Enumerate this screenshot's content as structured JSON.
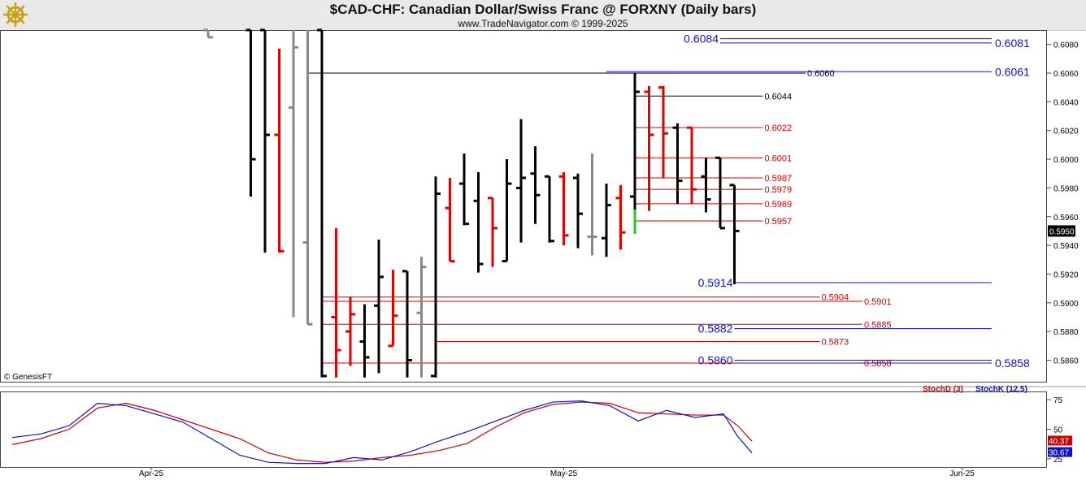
{
  "header": {
    "title": "$CAD-CHF:  Canadian Dollar/Swiss Franc @ FORXNY  (Daily bars)",
    "subtitle": "www.TradeNavigator.com © 1999-2025",
    "logo_icon": "gold-ship-wheel-logo-icon"
  },
  "watermark": "© GenesisFT",
  "colors": {
    "up_bar": "#000000",
    "down_bar": "#e00000",
    "neutral_bar": "#888888",
    "blue_line": "#1010cc",
    "red_line": "#cc0000",
    "price_box": "#000000",
    "stoch_d": "#cc0000",
    "stoch_k": "#1010cc"
  },
  "chart_data": [
    {
      "type": "ohlc",
      "name": "price",
      "ylim": [
        0.5845,
        0.609
      ],
      "y_ticks": [
        "0.6080",
        "0.6060",
        "0.6040",
        "0.6020",
        "0.6000",
        "0.5980",
        "0.5960",
        "0.5940",
        "0.5920",
        "0.5900",
        "0.5880",
        "0.5860"
      ],
      "last_price": "0.5950",
      "bars": [
        {
          "x": 14,
          "o": 0.609,
          "h": 0.609,
          "l": 0.6085,
          "c": 0.6085,
          "color": "neutral"
        },
        {
          "x": 17,
          "o": 0.609,
          "h": 0.609,
          "l": 0.5974,
          "c": 0.6,
          "color": "up"
        },
        {
          "x": 18,
          "o": 0.609,
          "h": 0.609,
          "l": 0.5935,
          "c": 0.6017,
          "color": "up"
        },
        {
          "x": 19,
          "o": 0.6017,
          "h": 0.6077,
          "l": 0.5935,
          "c": 0.5936,
          "color": "down"
        },
        {
          "x": 20,
          "o": 0.6036,
          "h": 0.609,
          "l": 0.589,
          "c": 0.6078,
          "color": "neutral"
        },
        {
          "x": 21,
          "o": 0.5942,
          "h": 0.609,
          "l": 0.5885,
          "c": 0.5885,
          "color": "neutral"
        },
        {
          "x": 22,
          "o": 0.609,
          "h": 0.609,
          "l": 0.5848,
          "c": 0.5849,
          "color": "up"
        },
        {
          "x": 23,
          "o": 0.589,
          "h": 0.5952,
          "l": 0.5848,
          "c": 0.5867,
          "color": "down"
        },
        {
          "x": 24,
          "o": 0.588,
          "h": 0.5904,
          "l": 0.5856,
          "c": 0.5892,
          "color": "down"
        },
        {
          "x": 25,
          "o": 0.5873,
          "h": 0.5899,
          "l": 0.5848,
          "c": 0.5862,
          "color": "up"
        },
        {
          "x": 26,
          "o": 0.5898,
          "h": 0.5944,
          "l": 0.5851,
          "c": 0.5918,
          "color": "up"
        },
        {
          "x": 27,
          "o": 0.587,
          "h": 0.5923,
          "l": 0.587,
          "c": 0.5891,
          "color": "down"
        },
        {
          "x": 28,
          "o": 0.5922,
          "h": 0.5922,
          "l": 0.5848,
          "c": 0.586,
          "color": "up"
        },
        {
          "x": 29,
          "o": 0.5893,
          "h": 0.5932,
          "l": 0.5848,
          "c": 0.5925,
          "color": "neutral"
        },
        {
          "x": 30,
          "o": 0.5849,
          "h": 0.5988,
          "l": 0.5848,
          "c": 0.5976,
          "color": "up"
        },
        {
          "x": 31,
          "o": 0.5966,
          "h": 0.5987,
          "l": 0.5929,
          "c": 0.5929,
          "color": "down"
        },
        {
          "x": 32,
          "o": 0.5983,
          "h": 0.6004,
          "l": 0.5954,
          "c": 0.5955,
          "color": "up"
        },
        {
          "x": 33,
          "o": 0.5971,
          "h": 0.5991,
          "l": 0.5921,
          "c": 0.5927,
          "color": "up"
        },
        {
          "x": 34,
          "o": 0.5973,
          "h": 0.5973,
          "l": 0.5925,
          "c": 0.5952,
          "color": "down"
        },
        {
          "x": 35,
          "o": 0.5929,
          "h": 0.6,
          "l": 0.5929,
          "c": 0.5983,
          "color": "up"
        },
        {
          "x": 36,
          "o": 0.598,
          "h": 0.6028,
          "l": 0.5942,
          "c": 0.5987,
          "color": "up"
        },
        {
          "x": 37,
          "o": 0.599,
          "h": 0.6009,
          "l": 0.5955,
          "c": 0.5975,
          "color": "up"
        },
        {
          "x": 38,
          "o": 0.5988,
          "h": 0.5988,
          "l": 0.5942,
          "c": 0.5943,
          "color": "up"
        },
        {
          "x": 39,
          "o": 0.5988,
          "h": 0.5991,
          "l": 0.594,
          "c": 0.5947,
          "color": "down"
        },
        {
          "x": 40,
          "o": 0.5987,
          "h": 0.599,
          "l": 0.5938,
          "c": 0.5962,
          "color": "up"
        },
        {
          "x": 41,
          "o": 0.5946,
          "h": 0.6004,
          "l": 0.5933,
          "c": 0.5946,
          "color": "neutral"
        },
        {
          "x": 42,
          "o": 0.5945,
          "h": 0.5983,
          "l": 0.5932,
          "c": 0.5968,
          "color": "up"
        },
        {
          "x": 43,
          "o": 0.5973,
          "h": 0.5982,
          "l": 0.5937,
          "c": 0.5949,
          "color": "down"
        },
        {
          "x": 44,
          "o": 0.5974,
          "h": 0.606,
          "l": 0.5948,
          "c": 0.6047,
          "color": "up"
        },
        {
          "x": 45,
          "o": 0.6047,
          "h": 0.6051,
          "l": 0.5964,
          "c": 0.6017,
          "color": "down"
        },
        {
          "x": 46,
          "o": 0.605,
          "h": 0.6051,
          "l": 0.5987,
          "c": 0.6018,
          "color": "down"
        },
        {
          "x": 47,
          "o": 0.6022,
          "h": 0.6025,
          "l": 0.5969,
          "c": 0.5985,
          "color": "up"
        },
        {
          "x": 48,
          "o": 0.6022,
          "h": 0.6022,
          "l": 0.5969,
          "c": 0.5979,
          "color": "down"
        },
        {
          "x": 49,
          "o": 0.5988,
          "h": 0.6001,
          "l": 0.5963,
          "c": 0.5972,
          "color": "up"
        },
        {
          "x": 50,
          "o": 0.6001,
          "h": 0.6001,
          "l": 0.5952,
          "c": 0.5952,
          "color": "up"
        },
        {
          "x": 51,
          "o": 0.5982,
          "h": 0.5982,
          "l": 0.5913,
          "c": 0.595,
          "color": "up"
        }
      ],
      "highlight_bar": {
        "x": 44,
        "low": 0.5948,
        "high": 0.5965,
        "color": "#22cc22"
      },
      "levels": [
        {
          "value": 0.6084,
          "label": "0.6084",
          "color": "blue",
          "x1": 50,
          "x2": 73,
          "label_side": "left"
        },
        {
          "value": 0.6081,
          "label": "0.6081",
          "color": "blue",
          "x1": 50,
          "x2": 73,
          "label_side": "right"
        },
        {
          "value": 0.6061,
          "label": "0.6061",
          "color": "blue",
          "x1": 42,
          "x2": 73,
          "label_side": "right"
        },
        {
          "value": 0.606,
          "label": "0.6060",
          "color": "black",
          "x1": 21,
          "x2": 56,
          "label_side": "end"
        },
        {
          "value": 0.6044,
          "label": "0.6044",
          "color": "black",
          "x1": 44,
          "x2": 53,
          "label_side": "end"
        },
        {
          "value": 0.6022,
          "label": "0.6022",
          "color": "red",
          "x1": 44,
          "x2": 53,
          "label_side": "end"
        },
        {
          "value": 0.6001,
          "label": "0.6001",
          "color": "red",
          "x1": 44,
          "x2": 53,
          "label_side": "end"
        },
        {
          "value": 0.5987,
          "label": "0.5987",
          "color": "red",
          "x1": 44,
          "x2": 53,
          "label_side": "end"
        },
        {
          "value": 0.5979,
          "label": "0.5979",
          "color": "red",
          "x1": 44,
          "x2": 53,
          "label_side": "end"
        },
        {
          "value": 0.5969,
          "label": "0.5969",
          "color": "red",
          "x1": 44,
          "x2": 53,
          "label_side": "end"
        },
        {
          "value": 0.5957,
          "label": "0.5957",
          "color": "red",
          "x1": 44,
          "x2": 53,
          "label_side": "end"
        },
        {
          "value": 0.5914,
          "label": "0.5914",
          "color": "blue",
          "x1": 51,
          "x2": 73,
          "label_side": "left"
        },
        {
          "value": 0.5904,
          "label": "0.5904",
          "color": "red",
          "x1": 22,
          "x2": 57,
          "label_side": "end"
        },
        {
          "value": 0.5901,
          "label": "0.5901",
          "color": "red",
          "x1": 22,
          "x2": 60,
          "label_side": "end"
        },
        {
          "value": 0.5885,
          "label": "0.5885",
          "color": "red",
          "x1": 22,
          "x2": 60,
          "label_side": "end"
        },
        {
          "value": 0.5882,
          "label": "0.5882",
          "color": "blue",
          "x1": 51,
          "x2": 73,
          "label_side": "left"
        },
        {
          "value": 0.5873,
          "label": "0.5873",
          "color": "red",
          "x1": 30,
          "x2": 57,
          "label_side": "end"
        },
        {
          "value": 0.586,
          "label": "0.5860",
          "color": "blue",
          "x1": 51,
          "x2": 73,
          "label_side": "left"
        },
        {
          "value": 0.5858,
          "label": "0.5858",
          "color": "red",
          "x1": 22,
          "x2": 60,
          "label_side": "end"
        },
        {
          "value": 0.5858,
          "label": "0.5858",
          "color": "blue",
          "x1": 51,
          "x2": 73,
          "label_side": "right"
        }
      ]
    },
    {
      "type": "line",
      "name": "stochastic",
      "ylim": [
        18,
        82
      ],
      "y_ticks": [
        "75",
        "50",
        "25"
      ],
      "legend": [
        "StochD (3)",
        "StochK (12,5)"
      ],
      "last_values": [
        "40.37",
        "30.67"
      ],
      "x_labels": [
        {
          "x": 10,
          "label": "Apr-25"
        },
        {
          "x": 39,
          "label": "May-25"
        },
        {
          "x": 67,
          "label": "Jun-25"
        }
      ],
      "series": [
        {
          "name": "StochD (3)",
          "color": "red",
          "points": [
            [
              0,
              37
            ],
            [
              2,
              42
            ],
            [
              4,
              50
            ],
            [
              6,
              68
            ],
            [
              8,
              72
            ],
            [
              10,
              66
            ],
            [
              12,
              58
            ],
            [
              14,
              50
            ],
            [
              16,
              42
            ],
            [
              18,
              30
            ],
            [
              20,
              24
            ],
            [
              22,
              22
            ],
            [
              24,
              23
            ],
            [
              26,
              26
            ],
            [
              28,
              28
            ],
            [
              30,
              32
            ],
            [
              32,
              38
            ],
            [
              34,
              52
            ],
            [
              36,
              64
            ],
            [
              38,
              71
            ],
            [
              40,
              73
            ],
            [
              42,
              72
            ],
            [
              44,
              64
            ],
            [
              46,
              63
            ],
            [
              48,
              62
            ],
            [
              50,
              62
            ],
            [
              51,
              53
            ],
            [
              52,
              40
            ]
          ]
        },
        {
          "name": "StochK (12,5)",
          "color": "blue",
          "points": [
            [
              0,
              43
            ],
            [
              2,
              46
            ],
            [
              4,
              53
            ],
            [
              6,
              72
            ],
            [
              8,
              70
            ],
            [
              10,
              63
            ],
            [
              12,
              56
            ],
            [
              14,
              42
            ],
            [
              16,
              28
            ],
            [
              18,
              22
            ],
            [
              20,
              21
            ],
            [
              22,
              21
            ],
            [
              24,
              26
            ],
            [
              26,
              24
            ],
            [
              28,
              31
            ],
            [
              30,
              40
            ],
            [
              32,
              48
            ],
            [
              34,
              57
            ],
            [
              36,
              66
            ],
            [
              38,
              73
            ],
            [
              40,
              74
            ],
            [
              42,
              70
            ],
            [
              44,
              57
            ],
            [
              46,
              66
            ],
            [
              48,
              60
            ],
            [
              50,
              63
            ],
            [
              51,
              44
            ],
            [
              52,
              30
            ]
          ]
        }
      ]
    }
  ]
}
